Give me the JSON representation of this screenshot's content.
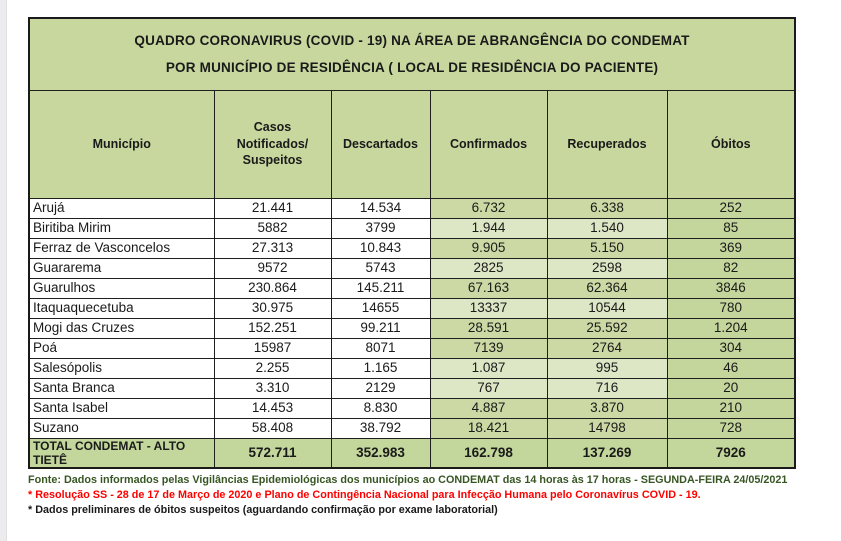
{
  "title": {
    "line1": "QUADRO CORONAVIRUS (COVID - 19) NA ÁREA DE ABRANGÊNCIA DO CONDEMAT",
    "line2": "POR MUNICÍPIO DE RESIDÊNCIA ( LOCAL DE RESIDÊNCIA DO PACIENTE)"
  },
  "table": {
    "columns": [
      "Município",
      "Casos Notificados/ Suspeitos",
      "Descartados",
      "Confirmados",
      "Recuperados",
      "Óbitos"
    ],
    "rows": [
      {
        "municipio": "Arujá",
        "casos": "21.441",
        "descartados": "14.534",
        "confirmados": "6.732",
        "recuperados": "6.338",
        "obitos": "252",
        "shade": "dark"
      },
      {
        "municipio": "Biritiba Mirim",
        "casos": "5882",
        "descartados": "3799",
        "confirmados": "1.944",
        "recuperados": "1.540",
        "obitos": "85",
        "shade": "light"
      },
      {
        "municipio": "Ferraz de Vasconcelos",
        "casos": "27.313",
        "descartados": "10.843",
        "confirmados": "9.905",
        "recuperados": "5.150",
        "obitos": "369",
        "shade": "dark"
      },
      {
        "municipio": "Guararema",
        "casos": "9572",
        "descartados": "5743",
        "confirmados": "2825",
        "recuperados": "2598",
        "obitos": "82",
        "shade": "light"
      },
      {
        "municipio": "Guarulhos",
        "casos": "230.864",
        "descartados": "145.211",
        "confirmados": "67.163",
        "recuperados": "62.364",
        "obitos": "3846",
        "shade": "dark"
      },
      {
        "municipio": "Itaquaquecetuba",
        "casos": "30.975",
        "descartados": "14655",
        "confirmados": "13337",
        "recuperados": "10544",
        "obitos": "780",
        "shade": "light"
      },
      {
        "municipio": "Mogi das Cruzes",
        "casos": "152.251",
        "descartados": "99.211",
        "confirmados": "28.591",
        "recuperados": "25.592",
        "obitos": "1.204",
        "shade": "dark"
      },
      {
        "municipio": "Poá",
        "casos": "15987",
        "descartados": "8071",
        "confirmados": "7139",
        "recuperados": "2764",
        "obitos": "304",
        "shade": "dark"
      },
      {
        "municipio": "Salesópolis",
        "casos": "2.255",
        "descartados": "1.165",
        "confirmados": "1.087",
        "recuperados": "995",
        "obitos": "46",
        "shade": "light"
      },
      {
        "municipio": "Santa Branca",
        "casos": "3.310",
        "descartados": "2129",
        "confirmados": "767",
        "recuperados": "716",
        "obitos": "20",
        "shade": "light"
      },
      {
        "municipio": "Santa Isabel",
        "casos": "14.453",
        "descartados": "8.830",
        "confirmados": "4.887",
        "recuperados": "3.870",
        "obitos": "210",
        "shade": "dark"
      },
      {
        "municipio": "Suzano",
        "casos": "58.408",
        "descartados": "38.792",
        "confirmados": "18.421",
        "recuperados": "14798",
        "obitos": "728",
        "shade": "dark"
      }
    ],
    "total": {
      "label": "TOTAL CONDEMAT - ALTO TIETÊ",
      "casos": "572.711",
      "descartados": "352.983",
      "confirmados": "162.798",
      "recuperados": "137.269",
      "obitos": "7926"
    }
  },
  "footer": {
    "fonte": "Fonte: Dados informados pelas Vigilâncias Epidemiológicas dos municípios ao CONDEMAT das 14 horas às 17 horas - SEGUNDA-FEIRA 24/05/2021",
    "resolucao": "* Resolução SS - 28 de 17 de Março de 2020 e Plano de Contingência Nacional para Infecção Humana pelo Coronavírus COVID - 19.",
    "dados": "* Dados preliminares de óbitos suspeitos (aguardando confirmação por exame laboratorial)"
  },
  "colors": {
    "header_green": "#c7d79e",
    "row_green_dark": "#ccd9a4",
    "row_green_light": "#dde7c6",
    "obitos_green": "#c5d69c",
    "total_green": "#c3d69b",
    "fonte_text": "#375623",
    "alert_text": "#ff0000",
    "border": "#1f1f1f",
    "left_strip": "#ececee"
  },
  "chart_data": {
    "type": "table",
    "title": "QUADRO CORONAVIRUS (COVID - 19) NA ÁREA DE ABRANGÊNCIA DO CONDEMAT POR MUNICÍPIO DE RESIDÊNCIA ( LOCAL DE RESIDÊNCIA DO PACIENTE)",
    "columns": [
      "Município",
      "Casos Notificados/ Suspeitos",
      "Descartados",
      "Confirmados",
      "Recuperados",
      "Óbitos"
    ],
    "rows": [
      [
        "Arujá",
        "21.441",
        "14.534",
        "6.732",
        "6.338",
        "252"
      ],
      [
        "Biritiba Mirim",
        "5882",
        "3799",
        "1.944",
        "1.540",
        "85"
      ],
      [
        "Ferraz de Vasconcelos",
        "27.313",
        "10.843",
        "9.905",
        "5.150",
        "369"
      ],
      [
        "Guararema",
        "9572",
        "5743",
        "2825",
        "2598",
        "82"
      ],
      [
        "Guarulhos",
        "230.864",
        "145.211",
        "67.163",
        "62.364",
        "3846"
      ],
      [
        "Itaquaquecetuba",
        "30.975",
        "14655",
        "13337",
        "10544",
        "780"
      ],
      [
        "Mogi das Cruzes",
        "152.251",
        "99.211",
        "28.591",
        "25.592",
        "1.204"
      ],
      [
        "Poá",
        "15987",
        "8071",
        "7139",
        "2764",
        "304"
      ],
      [
        "Salesópolis",
        "2.255",
        "1.165",
        "1.087",
        "995",
        "46"
      ],
      [
        "Santa Branca",
        "3.310",
        "2129",
        "767",
        "716",
        "20"
      ],
      [
        "Santa Isabel",
        "14.453",
        "8.830",
        "4.887",
        "3.870",
        "210"
      ],
      [
        "Suzano",
        "58.408",
        "38.792",
        "18.421",
        "14798",
        "728"
      ],
      [
        "TOTAL CONDEMAT - ALTO TIETÊ",
        "572.711",
        "352.983",
        "162.798",
        "137.269",
        "7926"
      ]
    ],
    "notes": [
      "Fonte: Dados informados pelas Vigilâncias Epidemiológicas dos municípios ao CONDEMAT das 14 horas às 17 horas - SEGUNDA-FEIRA 24/05/2021",
      "* Resolução SS - 28 de 17 de Março de 2020 e Plano de Contingência Nacional para Infecção Humana pelo Coronavírus COVID - 19.",
      "* Dados preliminares de óbitos suspeitos (aguardando confirmação por exame laboratorial)"
    ]
  }
}
